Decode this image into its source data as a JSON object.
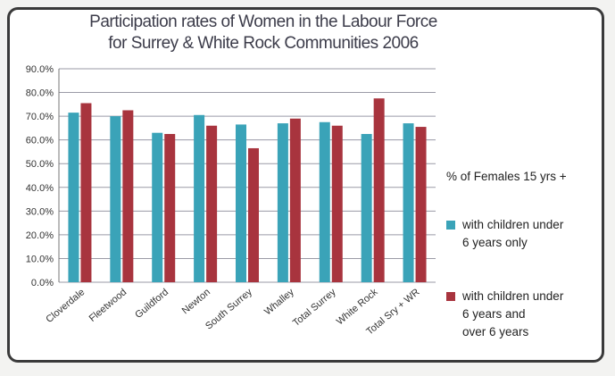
{
  "chart_data": {
    "type": "bar",
    "title_lines": [
      "Participation rates of Women in the Labour Force",
      "for Surrey & White Rock Communities 2006"
    ],
    "categories": [
      "Cloverdale",
      "Fleetwood",
      "Guildford",
      "Newton",
      "South Surrey",
      "Whalley",
      "Total Surrey",
      "White Rock",
      "Total Sry + WR"
    ],
    "series": [
      {
        "name": "with children under 6 years only",
        "label_lines": [
          "with children under",
          "6 years only"
        ],
        "color": "#3aa3b8",
        "values": [
          71.5,
          70.0,
          63.0,
          70.5,
          66.5,
          67.0,
          67.5,
          62.5,
          67.0
        ]
      },
      {
        "name": "with children under 6 years and over 6 years",
        "label_lines": [
          "with children under",
          "6 years and",
          "over 6 years"
        ],
        "color": "#a8343e",
        "values": [
          75.5,
          72.5,
          62.5,
          66.0,
          56.5,
          69.0,
          66.0,
          77.5,
          65.5
        ]
      }
    ],
    "legend_title": "% of Females 15 yrs +",
    "yticks": [
      "0.0%",
      "10.0%",
      "20.0%",
      "30.0%",
      "40.0%",
      "50.0%",
      "60.0%",
      "70.0%",
      "80.0%",
      "90.0%"
    ],
    "ylim": [
      0,
      90
    ],
    "xlabel": "",
    "ylabel": "",
    "grid": true,
    "legend_position": "right"
  }
}
